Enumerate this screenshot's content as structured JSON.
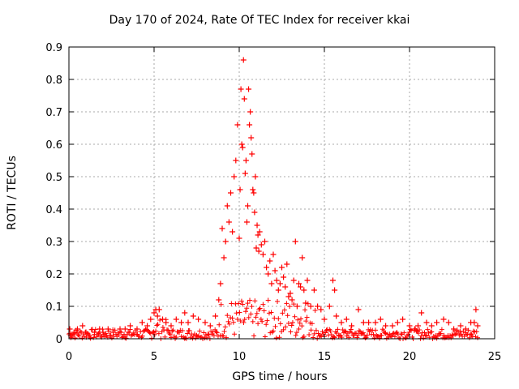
{
  "chart_data": {
    "type": "scatter",
    "title": "Day 170 of 2024, Rate Of TEC Index for receiver kkai",
    "xlabel": "GPS time / hours",
    "ylabel": "ROTI / TECUs",
    "xlim": [
      0,
      25
    ],
    "ylim": [
      0,
      0.9
    ],
    "xticks": [
      "0",
      "5",
      "10",
      "15",
      "20",
      "25"
    ],
    "yticks": [
      "0",
      "0.1",
      "0.2",
      "0.3",
      "0.4",
      "0.5",
      "0.6",
      "0.7",
      "0.8",
      "0.9"
    ],
    "grid": true,
    "marker": "+",
    "color": "#ff0000",
    "series": [
      {
        "x": [
          0.05,
          0.1,
          0.3,
          0.5,
          0.8,
          1.0,
          1.2,
          1.5,
          1.8,
          2.0,
          2.3,
          2.6,
          3.0,
          3.3,
          3.6,
          4.0,
          4.3,
          4.6,
          4.8,
          5.0,
          5.1,
          5.2,
          5.3,
          5.5,
          5.7,
          6.0,
          6.3,
          6.6,
          6.8,
          7.0,
          7.3,
          7.6,
          8.0,
          8.3,
          8.6,
          8.8,
          8.9,
          9.0,
          9.1,
          9.2,
          9.3,
          9.4,
          9.5,
          9.6,
          9.7,
          9.8,
          9.9,
          10.0,
          10.05,
          10.1,
          10.15,
          10.2,
          10.25,
          10.3,
          10.35,
          10.4,
          10.45,
          10.5,
          10.55,
          10.6,
          10.65,
          10.7,
          10.75,
          10.8,
          10.85,
          10.9,
          10.95,
          11.0,
          11.05,
          11.1,
          11.15,
          11.2,
          11.3,
          11.4,
          11.5,
          11.6,
          11.7,
          11.8,
          11.9,
          12.0,
          12.1,
          12.2,
          12.3,
          12.4,
          12.5,
          12.6,
          12.7,
          12.8,
          12.9,
          13.0,
          13.1,
          13.2,
          13.3,
          13.4,
          13.5,
          13.6,
          13.7,
          13.8,
          13.9,
          14.0,
          14.2,
          14.4,
          14.6,
          14.8,
          15.0,
          15.3,
          15.5,
          15.6,
          15.7,
          16.0,
          16.3,
          16.6,
          17.0,
          17.3,
          17.6,
          18.0,
          18.3,
          18.6,
          19.0,
          19.3,
          19.6,
          20.0,
          20.3,
          20.5,
          20.7,
          21.0,
          21.3,
          21.6,
          22.0,
          22.3,
          22.6,
          23.0,
          23.3,
          23.6,
          23.8,
          23.9,
          24.0
        ],
        "y": [
          0.03,
          0.01,
          0.02,
          0.03,
          0.04,
          0.02,
          0.01,
          0.02,
          0.03,
          0.02,
          0.03,
          0.02,
          0.03,
          0.03,
          0.04,
          0.03,
          0.05,
          0.04,
          0.06,
          0.08,
          0.09,
          0.07,
          0.09,
          0.06,
          0.05,
          0.04,
          0.06,
          0.05,
          0.08,
          0.05,
          0.07,
          0.06,
          0.05,
          0.04,
          0.07,
          0.12,
          0.17,
          0.34,
          0.25,
          0.3,
          0.41,
          0.36,
          0.45,
          0.33,
          0.5,
          0.55,
          0.66,
          0.31,
          0.46,
          0.77,
          0.6,
          0.59,
          0.86,
          0.74,
          0.51,
          0.55,
          0.36,
          0.41,
          0.77,
          0.66,
          0.7,
          0.62,
          0.57,
          0.46,
          0.45,
          0.39,
          0.5,
          0.28,
          0.35,
          0.32,
          0.27,
          0.33,
          0.29,
          0.26,
          0.3,
          0.22,
          0.2,
          0.24,
          0.17,
          0.26,
          0.21,
          0.18,
          0.15,
          0.17,
          0.22,
          0.19,
          0.16,
          0.23,
          0.13,
          0.14,
          0.12,
          0.18,
          0.3,
          0.1,
          0.17,
          0.16,
          0.25,
          0.15,
          0.11,
          0.18,
          0.1,
          0.15,
          0.1,
          0.09,
          0.06,
          0.1,
          0.18,
          0.15,
          0.07,
          0.05,
          0.06,
          0.04,
          0.09,
          0.05,
          0.05,
          0.05,
          0.06,
          0.04,
          0.04,
          0.05,
          0.06,
          0.04,
          0.03,
          0.04,
          0.08,
          0.05,
          0.04,
          0.05,
          0.06,
          0.05,
          0.03,
          0.04,
          0.03,
          0.05,
          0.05,
          0.09,
          0.04
        ]
      }
    ]
  }
}
